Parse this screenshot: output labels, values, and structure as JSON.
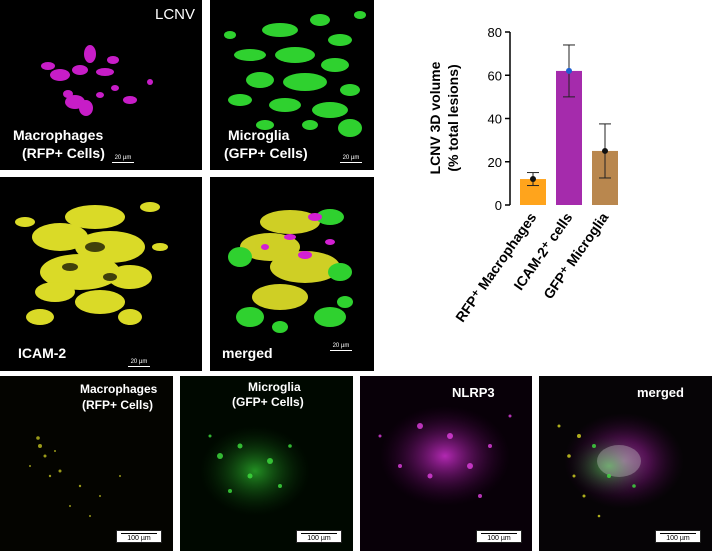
{
  "panels_3d": {
    "macrophages": {
      "label_line1": "Macrophages",
      "label_line2": "(RFP+ Cells)",
      "scale": "20 µm",
      "corner_tag": "LCNV"
    },
    "microglia": {
      "label_line1": "Microglia",
      "label_line2": "(GFP+ Cells)",
      "scale": "20 µm"
    },
    "icam": {
      "label": "ICAM-2",
      "scale": "20 µm"
    },
    "merged": {
      "label": "merged",
      "scale": "20 µm"
    }
  },
  "panels_2d": {
    "macrophages": {
      "label_line1": "Macrophages",
      "label_line2": "(RFP+ Cells)",
      "scale": "100 µm"
    },
    "microglia": {
      "label_line1": "Microglia",
      "label_line2": "(GFP+ Cells)",
      "scale": "100 µm"
    },
    "nlrp3": {
      "label": "NLRP3",
      "scale": "100 µm"
    },
    "merged": {
      "label": "merged",
      "scale": "100 µm"
    }
  },
  "colors": {
    "magenta": "#d21fd2",
    "green": "#2fd12f",
    "yellow": "#e6e62a",
    "bar_rfp": "#ffa41c",
    "bar_icam": "#a020a8",
    "bar_gfp": "#b9874e"
  },
  "chart_data": {
    "type": "bar",
    "ylabel_line1": "LCNV 3D volume",
    "ylabel_line2": "(% total lesions)",
    "ylim": [
      0,
      80
    ],
    "yticks": [
      "0",
      "20",
      "40",
      "60",
      "80"
    ],
    "categories": [
      "RFP⁺ Macrophages",
      "ICAM-2⁺ cells",
      "GFP⁺ Microglia"
    ],
    "values": [
      12,
      62,
      25
    ],
    "error": [
      3,
      12,
      12.5
    ],
    "markers": [
      12,
      62,
      25
    ]
  }
}
